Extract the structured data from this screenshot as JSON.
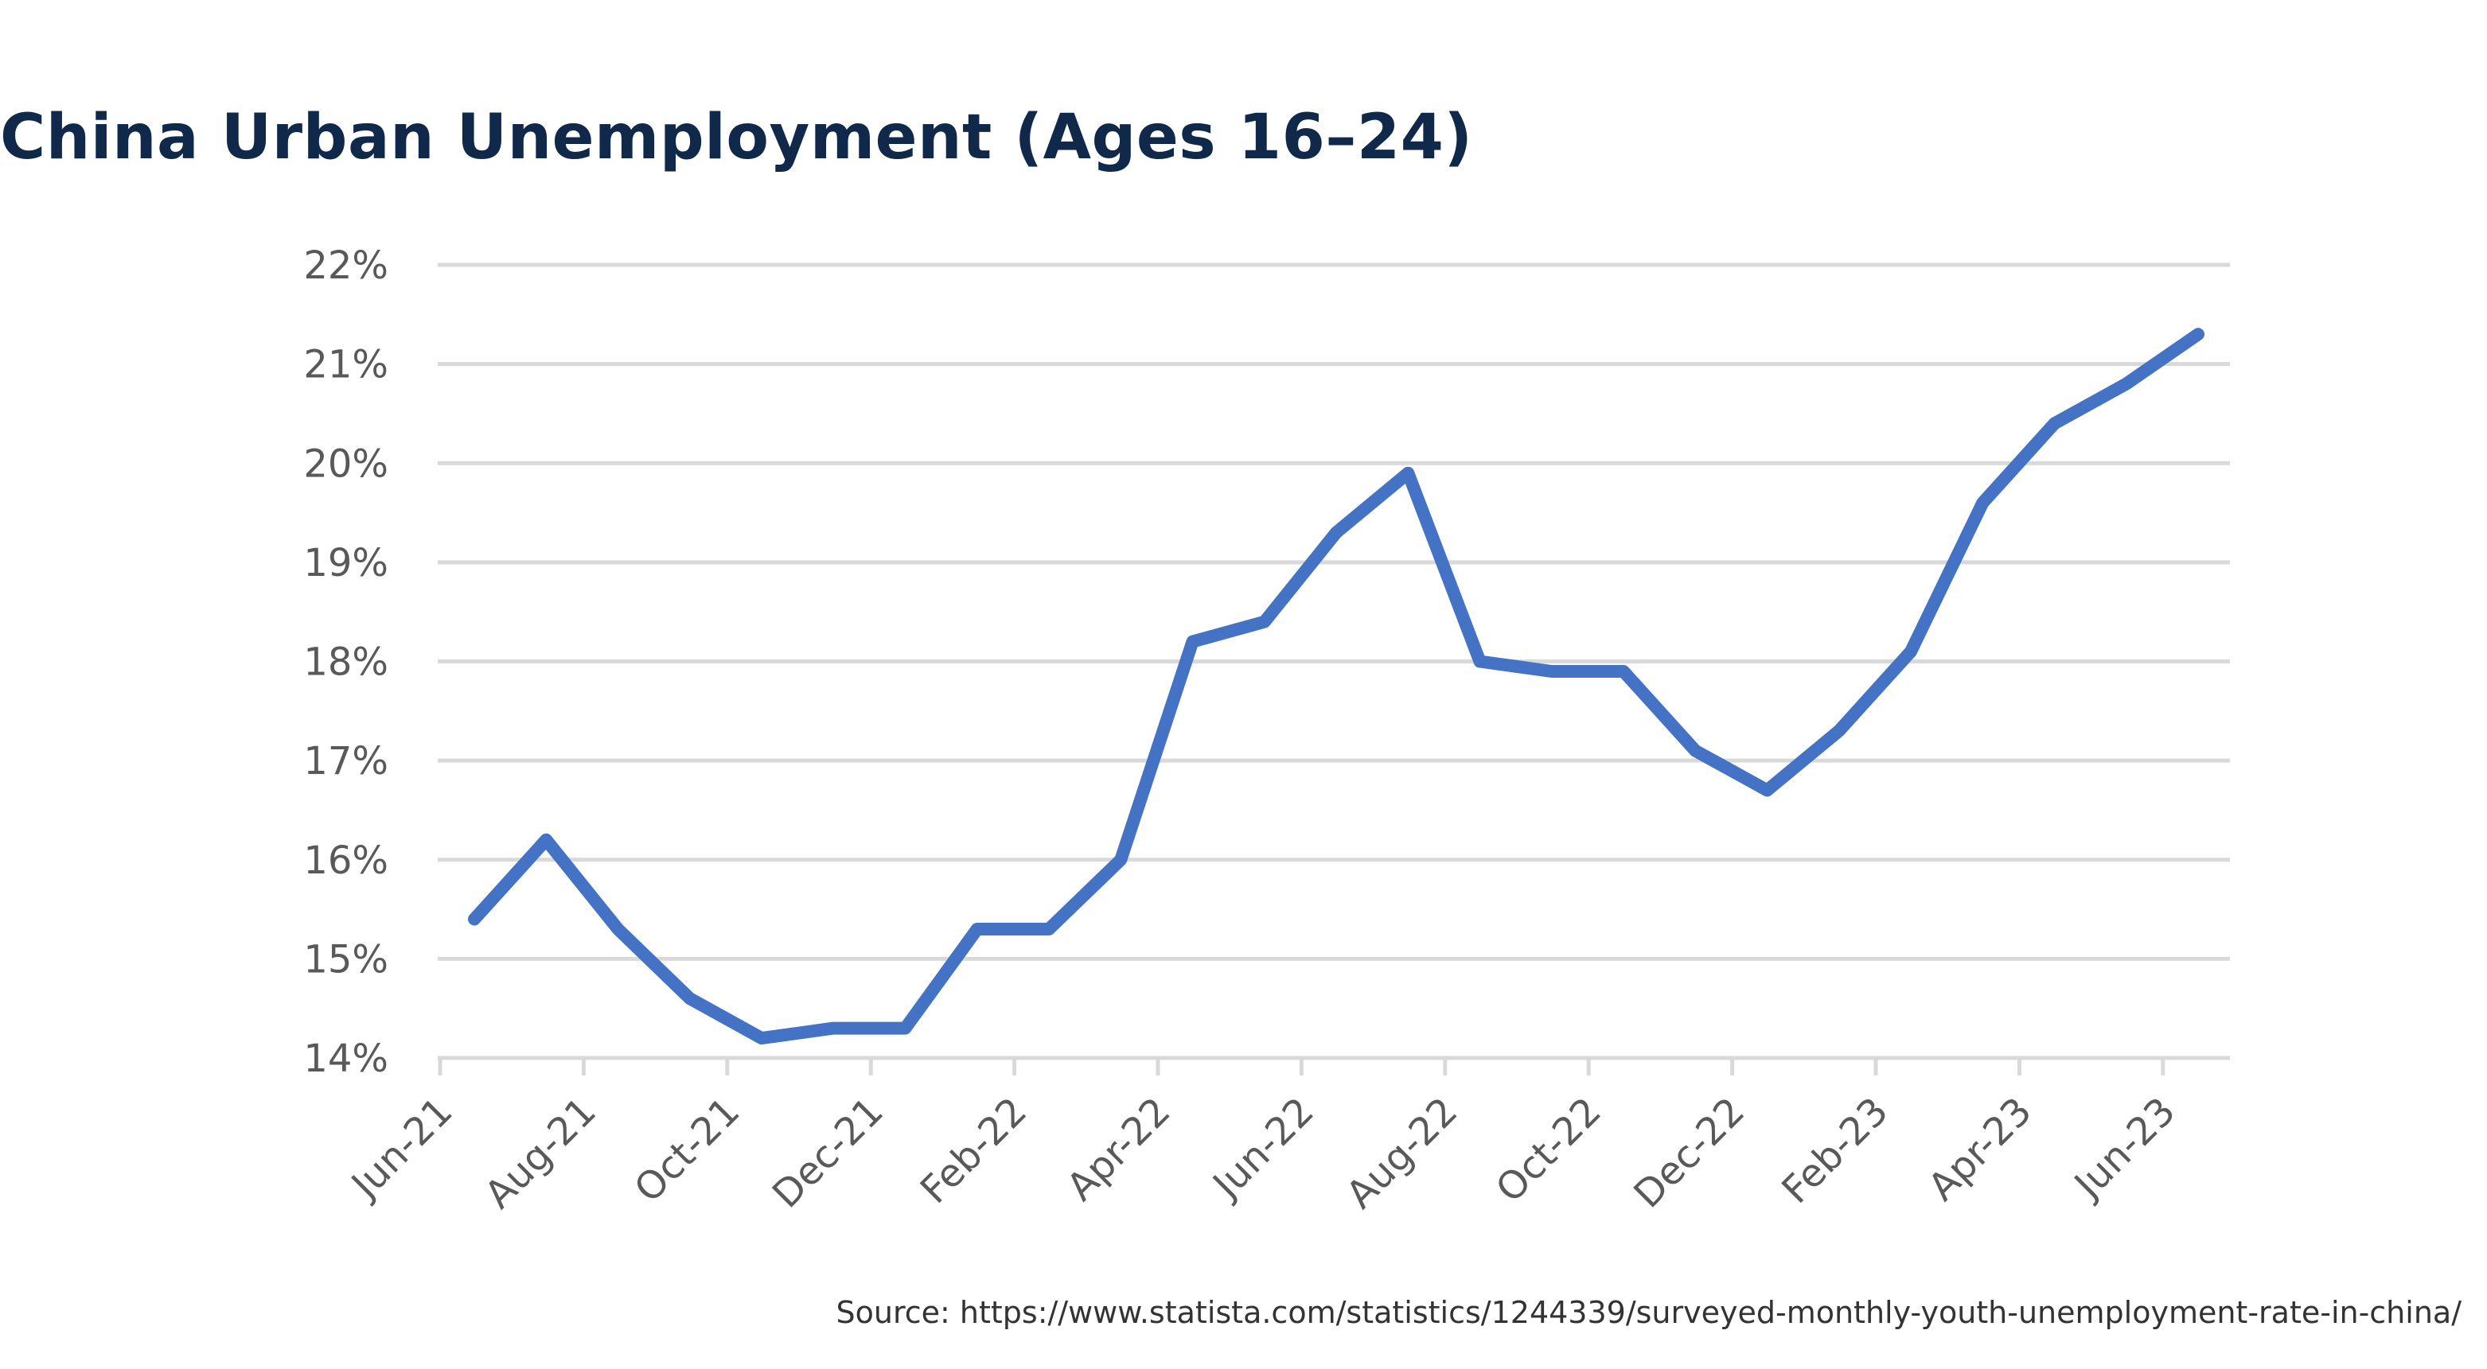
{
  "chart_data": {
    "type": "line",
    "title": "China Urban Unemployment (Ages 16–24)",
    "xlabel": "",
    "ylabel": "",
    "ylim": [
      14,
      22
    ],
    "y_ticks": [
      "14%",
      "15%",
      "16%",
      "17%",
      "18%",
      "19%",
      "20%",
      "21%",
      "22%"
    ],
    "x_tick_labels": [
      "Jun-21",
      "Aug-21",
      "Oct-21",
      "Dec-21",
      "Feb-22",
      "Apr-22",
      "Jun-22",
      "Aug-22",
      "Oct-22",
      "Dec-22",
      "Feb-23",
      "Apr-23",
      "Jun-23"
    ],
    "x": [
      "Jun-21",
      "Jul-21",
      "Aug-21",
      "Sep-21",
      "Oct-21",
      "Nov-21",
      "Dec-21",
      "Jan-22",
      "Feb-22",
      "Mar-22",
      "Apr-22",
      "May-22",
      "Jun-22",
      "Jul-22",
      "Aug-22",
      "Sep-22",
      "Oct-22",
      "Nov-22",
      "Dec-22",
      "Jan-23",
      "Feb-23",
      "Mar-23",
      "Apr-23",
      "May-23",
      "Jun-23"
    ],
    "series": [
      {
        "values": [
          15.4,
          16.2,
          15.3,
          14.6,
          14.2,
          14.3,
          14.3,
          15.3,
          15.3,
          16.0,
          18.2,
          18.4,
          19.3,
          19.9,
          18.0,
          17.9,
          17.9,
          17.1,
          16.7,
          17.3,
          18.1,
          19.6,
          20.4,
          20.8,
          21.3
        ],
        "color": "#4472c4"
      }
    ],
    "grid": true,
    "legend": "none",
    "gridline_color": "#d9d9d9",
    "axis_color": "#d9d9d9"
  },
  "source": "Source: https://www.statista.com/statistics/1244339/surveyed-monthly-youth-unemployment-rate-in-china/"
}
